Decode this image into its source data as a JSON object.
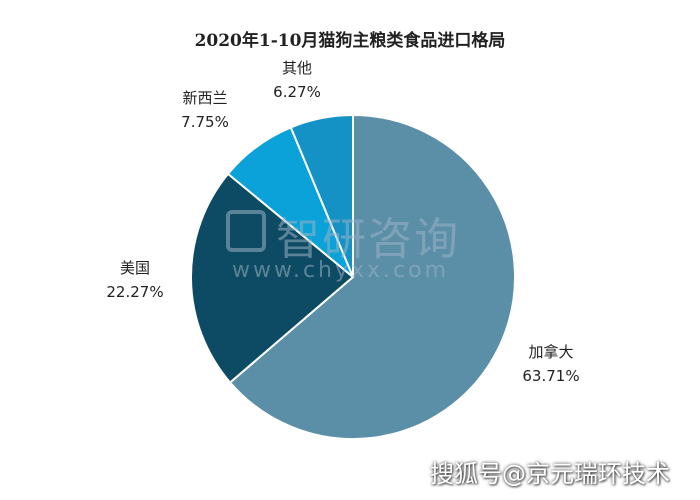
{
  "chart_data": {
    "type": "pie",
    "title": "2020年1-10月猫狗主粮类食品进口格局",
    "slices": [
      {
        "name": "加拿大",
        "value": 63.71,
        "label": "63.71%",
        "color": "#5b8fa8"
      },
      {
        "name": "美国",
        "value": 22.27,
        "label": "22.27%",
        "color": "#0d4a63"
      },
      {
        "name": "新西兰",
        "value": 7.75,
        "label": "7.75%",
        "color": "#0aa2d8"
      },
      {
        "name": "其他",
        "value": 6.27,
        "label": "6.27%",
        "color": "#1492c6"
      }
    ],
    "start_angle_deg": 0,
    "direction": "clockwise"
  },
  "watermark": {
    "cn": "智研咨询",
    "url": "www.chyxx.com",
    "footer": "搜狐号@京元瑞环技术"
  }
}
